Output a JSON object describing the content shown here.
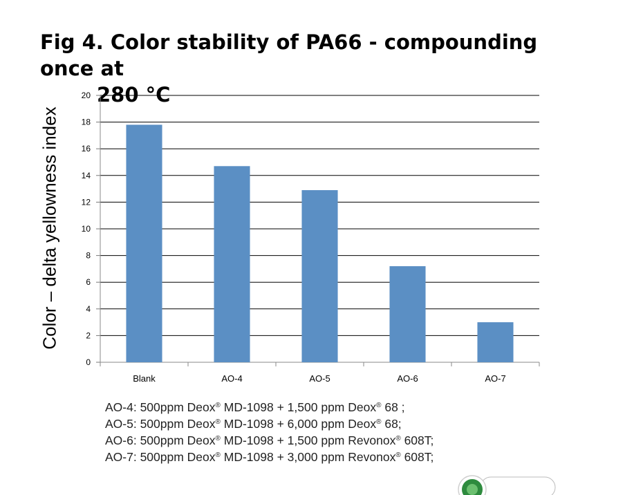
{
  "title_line1": "Fig 4. Color stability of PA66 - compounding once at",
  "title_line2": "280 °C",
  "chart_data": {
    "type": "bar",
    "title": "Fig 4. Color stability of PA66 - compounding once at 280 °C",
    "ylabel": "Color – delta yellowness index",
    "xlabel": "",
    "categories": [
      "Blank",
      "AO-4",
      "AO-5",
      "AO-6",
      "AO-7"
    ],
    "values": [
      17.8,
      14.7,
      12.9,
      7.2,
      3.0
    ],
    "ylim": [
      0,
      20
    ],
    "yticks": [
      0,
      2,
      4,
      6,
      8,
      10,
      12,
      14,
      16,
      18,
      20
    ],
    "grid": true,
    "legend": "none",
    "bar_color": "#5B8FC4",
    "grid_color": "#000000"
  },
  "notes": [
    {
      "name": "AO-4",
      "pre": "AO-4: 500ppm Deox",
      "mid": " MD-1098 + 1,500 ppm Deox",
      "post": " 68 ;",
      "reg": "®"
    },
    {
      "name": "AO-5",
      "pre": "AO-5: 500ppm Deox",
      "mid": " MD-1098 + 6,000 ppm Deox",
      "post": " 68;",
      "reg": "®"
    },
    {
      "name": "AO-6",
      "pre": "AO-6: 500ppm Deox",
      "mid": " MD-1098 + 1,500 ppm Revonox",
      "post": " 608T;",
      "reg": "®"
    },
    {
      "name": "AO-7",
      "pre": "AO-7: 500ppm Deox",
      "mid": " MD-1098 + 3,000 ppm Revonox",
      "post": " 608T;",
      "reg": "®"
    }
  ]
}
